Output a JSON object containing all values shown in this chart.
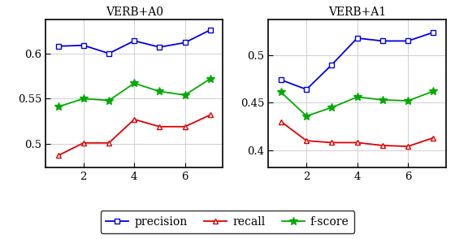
{
  "title_left": "VERB+A0",
  "title_right": "VERB+A1",
  "x_values": [
    1,
    2,
    3,
    4,
    5,
    6,
    7
  ],
  "left": {
    "precision": [
      0.608,
      0.609,
      0.6,
      0.614,
      0.607,
      0.612,
      0.626
    ],
    "recall": [
      0.487,
      0.501,
      0.501,
      0.527,
      0.519,
      0.519,
      0.532
    ],
    "fscore": [
      0.541,
      0.55,
      0.548,
      0.567,
      0.558,
      0.554,
      0.572
    ]
  },
  "right": {
    "precision": [
      0.474,
      0.464,
      0.49,
      0.518,
      0.515,
      0.515,
      0.524
    ],
    "recall": [
      0.43,
      0.41,
      0.408,
      0.408,
      0.405,
      0.404,
      0.413
    ],
    "fscore": [
      0.461,
      0.436,
      0.445,
      0.456,
      0.453,
      0.452,
      0.462
    ]
  },
  "precision_color": "#0000dd",
  "recall_color": "#dd0000",
  "fscore_color": "#00aa00",
  "xticks": [
    2,
    4,
    6
  ],
  "left_yticks": [
    0.5,
    0.55,
    0.6
  ],
  "right_yticks": [
    0.4,
    0.45,
    0.5
  ],
  "left_ylim": [
    0.474,
    0.638
  ],
  "right_ylim": [
    0.382,
    0.538
  ],
  "legend_labels": [
    "precision",
    "recall",
    "f-score"
  ],
  "bg_color": "#ffffff"
}
